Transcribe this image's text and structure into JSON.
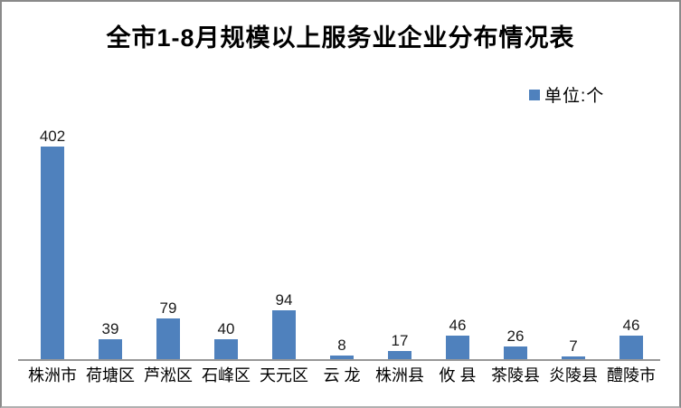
{
  "window": {
    "background": "#ffffff",
    "border_color": "#8a8a8a"
  },
  "chart_data": {
    "type": "bar",
    "title": "全市1-8月规模以上服务业企业分布情况表",
    "legend_label": "单位:个",
    "legend_position": "top-right",
    "categories": [
      "株洲市",
      "荷塘区",
      "芦淞区",
      "石峰区",
      "天元区",
      "云 龙",
      "株洲县",
      "攸 县",
      "茶陵县",
      "炎陵县",
      "醴陵市"
    ],
    "values": [
      402,
      39,
      79,
      40,
      94,
      8,
      17,
      46,
      26,
      7,
      46
    ],
    "data_labels": true,
    "bar_color": "#4F81BD",
    "axis_line_color": "#989898",
    "grid": false,
    "xlabel": "",
    "ylabel": "",
    "ylim": [
      0,
      450
    ]
  }
}
